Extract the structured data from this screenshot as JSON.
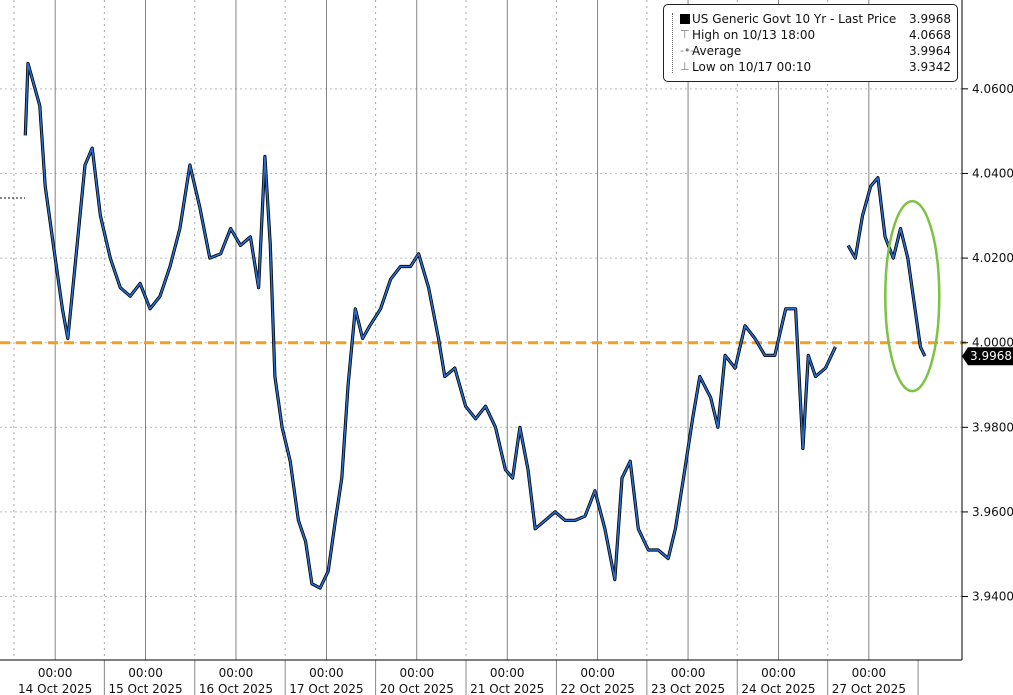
{
  "chart_data": {
    "type": "line",
    "title": "US Generic Govt 10 Yr - Last Price",
    "x_unit": "trading days from 14 Oct 2025 00:00",
    "x_tick_labels": [
      {
        "time": "00:00",
        "date": "14 Oct 2025"
      },
      {
        "time": "00:00",
        "date": "15 Oct 2025"
      },
      {
        "time": "00:00",
        "date": "16 Oct 2025"
      },
      {
        "time": "00:00",
        "date": "17 Oct 2025"
      },
      {
        "time": "00:00",
        "date": "20 Oct 2025"
      },
      {
        "time": "00:00",
        "date": "21 Oct 2025"
      },
      {
        "time": "00:00",
        "date": "22 Oct 2025"
      },
      {
        "time": "00:00",
        "date": "23 Oct 2025"
      },
      {
        "time": "00:00",
        "date": "24 Oct 2025"
      },
      {
        "time": "00:00",
        "date": "27 Oct 2025"
      }
    ],
    "y_ticks": [
      "3.9400",
      "3.9600",
      "3.9800",
      "4.0000",
      "4.0200",
      "4.0400",
      "4.0600"
    ],
    "ylim": [
      3.925,
      4.081
    ],
    "xlim": [
      -0.61,
      10.03
    ],
    "grid": true,
    "legend_position": "top-right",
    "legend": [
      {
        "label": "US Generic Govt 10 Yr - Last Price",
        "value": "3.9968",
        "icon": "black-square"
      },
      {
        "label": "High on 10/13 18:00",
        "value": "4.0668",
        "icon": "high-marker-icon"
      },
      {
        "label": "Average",
        "value": "3.9964",
        "icon": "average-marker-icon"
      },
      {
        "label": "Low on 10/17 00:10",
        "value": "3.9342",
        "icon": "low-marker-icon"
      }
    ],
    "last_price_label": "3.9968",
    "reference_line": {
      "value": 4.0,
      "color": "#f0a020",
      "style": "dashed"
    },
    "annotation": {
      "type": "ellipse",
      "color": "#7dc242",
      "x_center": 9.48,
      "y_center": 4.011
    },
    "series": [
      {
        "name": "US Generic Govt 10 Yr",
        "color": "#2a6fd0",
        "x": [
          -0.33,
          -0.3,
          -0.17,
          -0.11,
          0,
          0.08,
          0.14,
          0.22,
          0.33,
          0.41,
          0.5,
          0.61,
          0.72,
          0.83,
          0.94,
          1.05,
          1.16,
          1.27,
          1.38,
          1.49,
          1.6,
          1.71,
          1.83,
          1.94,
          2.05,
          2.16,
          2.25,
          2.32,
          2.38,
          2.43,
          2.51,
          2.6,
          2.69,
          2.77,
          2.84,
          2.93,
          3.02,
          3.1,
          3.17,
          3.24,
          3.32,
          3.4,
          3.48,
          3.6,
          3.71,
          3.82,
          3.93,
          4.02,
          4.13,
          4.24,
          4.31,
          4.42,
          4.54,
          4.65,
          4.76,
          4.87,
          4.98,
          5.06,
          5.14,
          5.23,
          5.31,
          5.42,
          5.53,
          5.64,
          5.75,
          5.86,
          5.97,
          6.08,
          6.19,
          6.27,
          6.36,
          6.45,
          6.56,
          6.67,
          6.78,
          6.86,
          6.95,
          7.05,
          7.13,
          7.25,
          7.33,
          7.41,
          7.52,
          7.63,
          7.74,
          7.85,
          7.96,
          8.08,
          8.19,
          8.27,
          8.33,
          8.41,
          8.52,
          8.63,
          null,
          8.77,
          8.85,
          8.93,
          9.02,
          9.1,
          9.18,
          9.27,
          9.35,
          9.43,
          9.49,
          9.57,
          9.62
        ],
        "values": [
          4.049,
          4.066,
          4.056,
          4.037,
          4.02,
          4.008,
          4.001,
          4.018,
          4.042,
          4.046,
          4.03,
          4.02,
          4.013,
          4.011,
          4.014,
          4.008,
          4.011,
          4.018,
          4.027,
          4.042,
          4.032,
          4.02,
          4.021,
          4.027,
          4.023,
          4.025,
          4.013,
          4.044,
          4.023,
          3.992,
          3.98,
          3.972,
          3.958,
          3.953,
          3.943,
          3.942,
          3.946,
          3.958,
          3.968,
          3.99,
          4.008,
          4.001,
          4.004,
          4.008,
          4.015,
          4.018,
          4.018,
          4.021,
          4.013,
          4.001,
          3.992,
          3.994,
          3.985,
          3.982,
          3.985,
          3.98,
          3.97,
          3.968,
          3.98,
          3.97,
          3.956,
          3.958,
          3.96,
          3.958,
          3.958,
          3.959,
          3.965,
          3.956,
          3.944,
          3.968,
          3.972,
          3.956,
          3.951,
          3.951,
          3.949,
          3.956,
          3.968,
          3.982,
          3.992,
          3.987,
          3.98,
          3.997,
          3.994,
          4.004,
          4.001,
          3.997,
          3.997,
          4.008,
          4.008,
          3.975,
          3.997,
          3.992,
          3.994,
          3.999,
          null,
          4.023,
          4.02,
          4.03,
          4.037,
          4.039,
          4.025,
          4.02,
          4.027,
          4.02,
          4.011,
          3.999,
          3.9968
        ]
      }
    ]
  }
}
